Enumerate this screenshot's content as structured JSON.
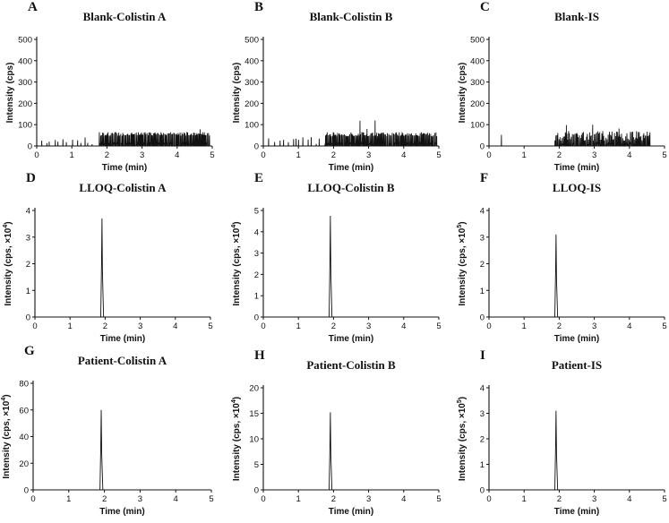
{
  "chart_data": [
    {
      "panel": "A",
      "title": "Blank-Colistin A",
      "type": "line",
      "xlabel": "Time (min)",
      "ylabel": "Intensity (cps)",
      "ylabel_exp": "",
      "xlim": [
        0,
        5
      ],
      "ylim": [
        0,
        500
      ],
      "xticks": [
        "0",
        "1",
        "2",
        "3",
        "4",
        "5"
      ],
      "yticks": [
        "0",
        "100",
        "200",
        "300",
        "400",
        "500"
      ],
      "signal": "noise",
      "noise": {
        "segments": [
          [
            0.05,
            1.65,
            8,
            45
          ],
          [
            1.75,
            4.95,
            48,
            65
          ]
        ],
        "spikes": [
          [
            4.65,
            78
          ]
        ]
      }
    },
    {
      "panel": "B",
      "title": "Blank-Colistin B",
      "type": "line",
      "xlabel": "Time (min)",
      "ylabel": "Intensity (cps)",
      "ylabel_exp": "",
      "xlim": [
        0,
        5
      ],
      "ylim": [
        0,
        500
      ],
      "xticks": [
        "0",
        "1",
        "2",
        "3",
        "4",
        "5"
      ],
      "yticks": [
        "0",
        "100",
        "200",
        "300",
        "400",
        "500"
      ],
      "signal": "noise",
      "noise": {
        "segments": [
          [
            0.05,
            1.65,
            8,
            45
          ],
          [
            1.75,
            4.95,
            45,
            65
          ]
        ],
        "spikes": [
          [
            2.75,
            118
          ],
          [
            3.18,
            120
          ],
          [
            2.95,
            80
          ]
        ]
      }
    },
    {
      "panel": "C",
      "title": "Blank-IS",
      "type": "line",
      "xlabel": "Time (min)",
      "ylabel": "Intensity (cps)",
      "ylabel_exp": "",
      "xlim": [
        0,
        5
      ],
      "ylim": [
        0,
        500
      ],
      "xticks": [
        "0",
        "1",
        "2",
        "3",
        "4",
        "5"
      ],
      "yticks": [
        "0",
        "100",
        "200",
        "300",
        "400",
        "500"
      ],
      "signal": "noise",
      "noise": {
        "segments": [
          [
            1.85,
            4.6,
            25,
            70
          ]
        ],
        "spikes": [
          [
            0.35,
            52
          ],
          [
            2.2,
            98
          ],
          [
            2.95,
            100
          ],
          [
            3.7,
            82
          ]
        ]
      }
    },
    {
      "panel": "D",
      "title": "LLOQ-Colistin A",
      "type": "line",
      "xlabel": "Time (min)",
      "ylabel": "Intensity (cps, ×10",
      "ylabel_exp": "4",
      "xlim": [
        0,
        5
      ],
      "ylim": [
        0,
        4
      ],
      "xticks": [
        "0",
        "1",
        "2",
        "3",
        "4",
        "5"
      ],
      "yticks": [
        "0",
        "1",
        "2",
        "3",
        "4"
      ],
      "signal": "peak",
      "peak": {
        "x": 1.91,
        "height": 3.7,
        "width": 0.035
      }
    },
    {
      "panel": "E",
      "title": "LLOQ-Colistin B",
      "type": "line",
      "xlabel": "Time (min)",
      "ylabel": "Intensity (cps, ×10",
      "ylabel_exp": "4",
      "xlim": [
        0,
        5
      ],
      "ylim": [
        0,
        5
      ],
      "xticks": [
        "0",
        "1",
        "2",
        "3",
        "4",
        "5"
      ],
      "yticks": [
        "0",
        "1",
        "2",
        "3",
        "4",
        "5"
      ],
      "signal": "peak",
      "peak": {
        "x": 1.91,
        "height": 4.75,
        "width": 0.035
      }
    },
    {
      "panel": "F",
      "title": "LLOQ-IS",
      "type": "line",
      "xlabel": "Time (min)",
      "ylabel": "Intensity (cps, ×10",
      "ylabel_exp": "5",
      "xlim": [
        0,
        5
      ],
      "ylim": [
        0,
        4
      ],
      "xticks": [
        "0",
        "1",
        "2",
        "3",
        "4",
        "5"
      ],
      "yticks": [
        "0",
        "1",
        "2",
        "3",
        "4"
      ],
      "signal": "peak",
      "peak": {
        "x": 1.91,
        "height": 3.1,
        "width": 0.035
      }
    },
    {
      "panel": "G",
      "title": "Patient-Colistin A",
      "type": "line",
      "xlabel": "Time (min)",
      "ylabel": "Intensity (cps, ×10",
      "ylabel_exp": "4",
      "xlim": [
        0,
        5
      ],
      "ylim": [
        0,
        80
      ],
      "xticks": [
        "0",
        "1",
        "2",
        "3",
        "4",
        "5"
      ],
      "yticks": [
        "0",
        "20",
        "40",
        "60",
        "80"
      ],
      "signal": "peak",
      "peak": {
        "x": 1.91,
        "height": 60,
        "width": 0.035
      }
    },
    {
      "panel": "H",
      "title": "Patient-Colistin B",
      "type": "line",
      "xlabel": "Time (min)",
      "ylabel": "Intensity (cps, ×10",
      "ylabel_exp": "4",
      "xlim": [
        0,
        5
      ],
      "ylim": [
        0,
        20
      ],
      "xticks": [
        "0",
        "1",
        "2",
        "3",
        "4",
        "5"
      ],
      "yticks": [
        "0",
        "5",
        "10",
        "15",
        "20"
      ],
      "signal": "peak",
      "peak": {
        "x": 1.91,
        "height": 15.2,
        "width": 0.035
      }
    },
    {
      "panel": "I",
      "title": "Patient-IS",
      "type": "line",
      "xlabel": "Time (min)",
      "ylabel": "Intensity (cps, ×10",
      "ylabel_exp": "5",
      "xlim": [
        0,
        5
      ],
      "ylim": [
        0,
        4
      ],
      "xticks": [
        "0",
        "1",
        "2",
        "3",
        "4",
        "5"
      ],
      "yticks": [
        "0",
        "1",
        "2",
        "3",
        "4"
      ],
      "signal": "peak",
      "peak": {
        "x": 1.91,
        "height": 3.1,
        "width": 0.035
      }
    }
  ]
}
